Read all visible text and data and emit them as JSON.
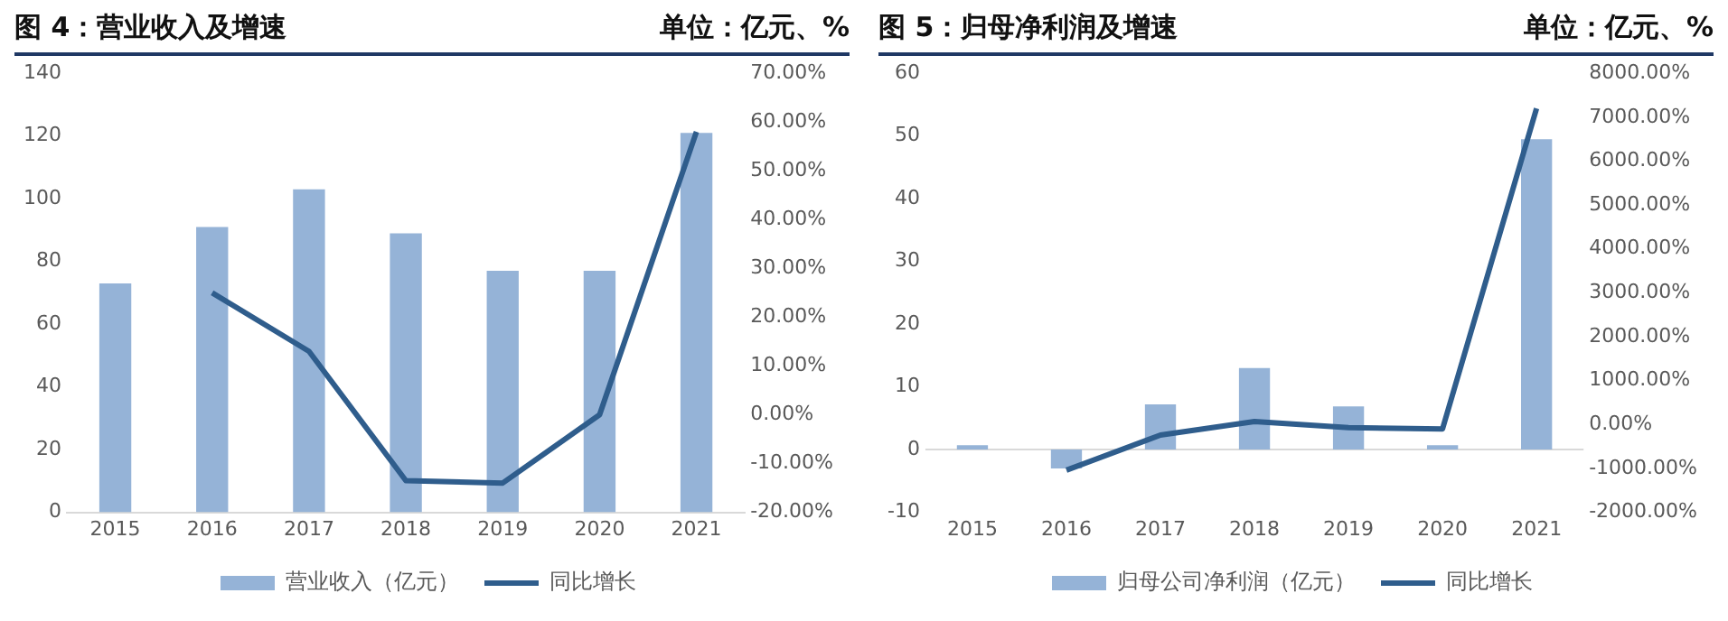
{
  "chart_data": [
    {
      "type": "bar",
      "title": "图 4：营业收入及增速",
      "subtitle": "单位：亿元、%",
      "categories": [
        "2015",
        "2016",
        "2017",
        "2018",
        "2019",
        "2020",
        "2021"
      ],
      "series": [
        {
          "name": "营业收入（亿元）",
          "color": "#95b3d7",
          "values": [
            73,
            91,
            103,
            89,
            77,
            77,
            121
          ]
        },
        {
          "name": "同比增长",
          "type": "line",
          "axis": "y2",
          "color": "#2f5d8c",
          "values": [
            null,
            25,
            13,
            -13.5,
            -14,
            0,
            58
          ]
        }
      ],
      "ylim": [
        0,
        140
      ],
      "yticks": [
        0,
        20,
        40,
        60,
        80,
        100,
        120,
        140
      ],
      "y2lim": [
        -20,
        70
      ],
      "y2ticks": [
        {
          "value": -20,
          "label": "-20.00%"
        },
        {
          "value": -10,
          "label": "-10.00%"
        },
        {
          "value": 0,
          "label": "0.00%"
        },
        {
          "value": 10,
          "label": "10.00%"
        },
        {
          "value": 20,
          "label": "20.00%"
        },
        {
          "value": 30,
          "label": "30.00%"
        },
        {
          "value": 40,
          "label": "40.00%"
        },
        {
          "value": 50,
          "label": "50.00%"
        },
        {
          "value": 60,
          "label": "60.00%"
        },
        {
          "value": 70,
          "label": "70.00%"
        }
      ],
      "grid": false,
      "legend": "bottom",
      "marker": "none"
    },
    {
      "type": "bar",
      "title": "图 5：归母净利润及增速",
      "subtitle": "单位：亿元、%",
      "categories": [
        "2015",
        "2016",
        "2017",
        "2018",
        "2019",
        "2020",
        "2021"
      ],
      "series": [
        {
          "name": "归母公司净利润（亿元）",
          "color": "#95b3d7",
          "values": [
            0.7,
            -3,
            7.2,
            13,
            6.9,
            0.7,
            49.5
          ]
        },
        {
          "name": "同比增长",
          "type": "line",
          "axis": "y2",
          "color": "#2f5d8c",
          "values": [
            null,
            -1040,
            -240,
            70,
            -70,
            -100,
            7200
          ]
        }
      ],
      "ylim": [
        -10,
        60
      ],
      "yticks": [
        -10,
        0,
        10,
        20,
        30,
        40,
        50,
        60
      ],
      "y2lim": [
        -2000,
        8000
      ],
      "y2ticks": [
        {
          "value": -2000,
          "label": "-2000.00%"
        },
        {
          "value": -1000,
          "label": "-1000.00%"
        },
        {
          "value": 0,
          "label": "0.00%"
        },
        {
          "value": 1000,
          "label": "1000.00%"
        },
        {
          "value": 2000,
          "label": "2000.00%"
        },
        {
          "value": 3000,
          "label": "3000.00%"
        },
        {
          "value": 4000,
          "label": "4000.00%"
        },
        {
          "value": 5000,
          "label": "5000.00%"
        },
        {
          "value": 6000,
          "label": "6000.00%"
        },
        {
          "value": 7000,
          "label": "7000.00%"
        },
        {
          "value": 8000,
          "label": "8000.00%"
        }
      ],
      "ref_lines": [
        {
          "axis": "y",
          "value": 0,
          "color": "#d9d9d9"
        }
      ],
      "grid": false,
      "legend": "bottom",
      "marker": "none"
    }
  ]
}
